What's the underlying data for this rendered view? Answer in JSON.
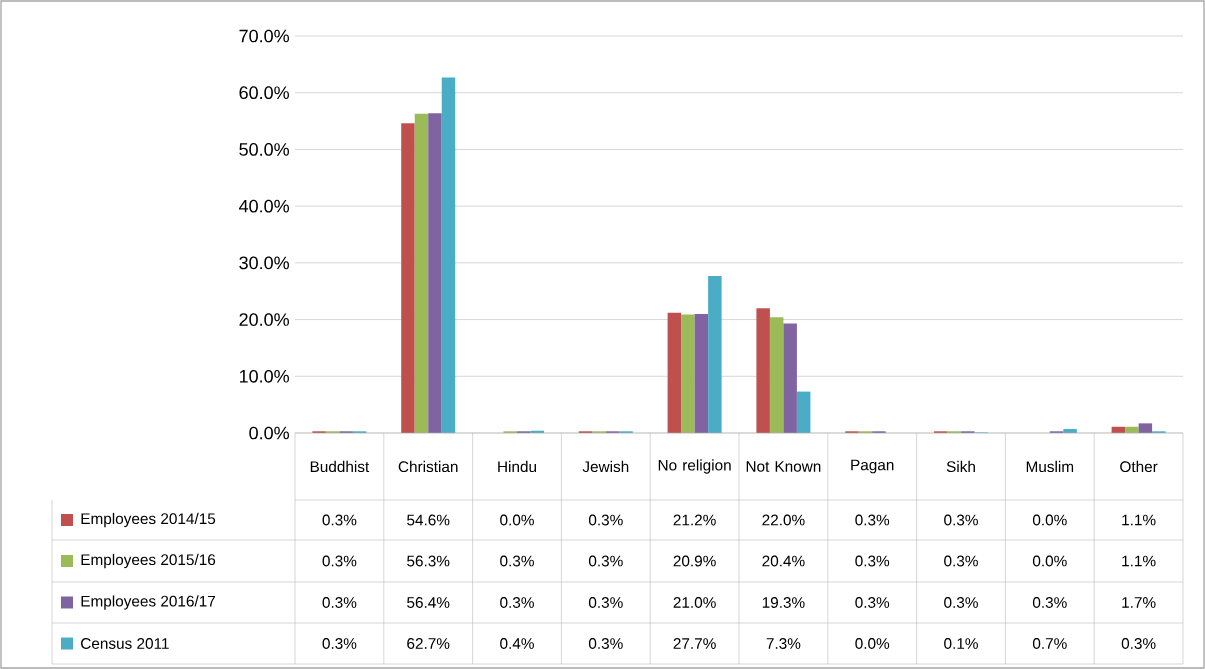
{
  "chart_data": {
    "type": "bar",
    "categories": [
      "Buddhist",
      "Christian",
      "Hindu",
      "Jewish",
      "No religion",
      "Not Known",
      "Pagan",
      "Sikh",
      "Muslim",
      "Other"
    ],
    "series": [
      {
        "name": "Employees 2014/15",
        "color": "#c0504d",
        "values": [
          0.3,
          54.6,
          0.0,
          0.3,
          21.2,
          22.0,
          0.3,
          0.3,
          0.0,
          1.1
        ],
        "value_labels": [
          "0.3%",
          "54.6%",
          "0.0%",
          "0.3%",
          "21.2%",
          "22.0%",
          "0.3%",
          "0.3%",
          "0.0%",
          "1.1%"
        ]
      },
      {
        "name": "Employees 2015/16",
        "color": "#9bbb59",
        "values": [
          0.3,
          56.3,
          0.3,
          0.3,
          20.9,
          20.4,
          0.3,
          0.3,
          0.0,
          1.1
        ],
        "value_labels": [
          "0.3%",
          "56.3%",
          "0.3%",
          "0.3%",
          "20.9%",
          "20.4%",
          "0.3%",
          "0.3%",
          "0.0%",
          "1.1%"
        ]
      },
      {
        "name": "Employees 2016/17",
        "color": "#8064a2",
        "values": [
          0.3,
          56.4,
          0.3,
          0.3,
          21.0,
          19.3,
          0.3,
          0.3,
          0.3,
          1.7
        ],
        "value_labels": [
          "0.3%",
          "56.4%",
          "0.3%",
          "0.3%",
          "21.0%",
          "19.3%",
          "0.3%",
          "0.3%",
          "0.3%",
          "1.7%"
        ]
      },
      {
        "name": "Census 2011",
        "color": "#4bacc6",
        "values": [
          0.3,
          62.7,
          0.4,
          0.3,
          27.7,
          7.3,
          0.0,
          0.1,
          0.7,
          0.3
        ],
        "value_labels": [
          "0.3%",
          "62.7%",
          "0.4%",
          "0.3%",
          "27.7%",
          "7.3%",
          "0.0%",
          "0.1%",
          "0.7%",
          "0.3%"
        ]
      }
    ],
    "ylim": [
      0,
      70
    ],
    "yticks": [
      {
        "value": 0,
        "label": "0.0%"
      },
      {
        "value": 10,
        "label": "10.0%"
      },
      {
        "value": 20,
        "label": "20.0%"
      },
      {
        "value": 30,
        "label": "30.0%"
      },
      {
        "value": 40,
        "label": "40.0%"
      },
      {
        "value": 50,
        "label": "50.0%"
      },
      {
        "value": 60,
        "label": "60.0%"
      },
      {
        "value": 70,
        "label": "70.0%"
      }
    ],
    "grid": "y",
    "legend": "bottom left"
  }
}
